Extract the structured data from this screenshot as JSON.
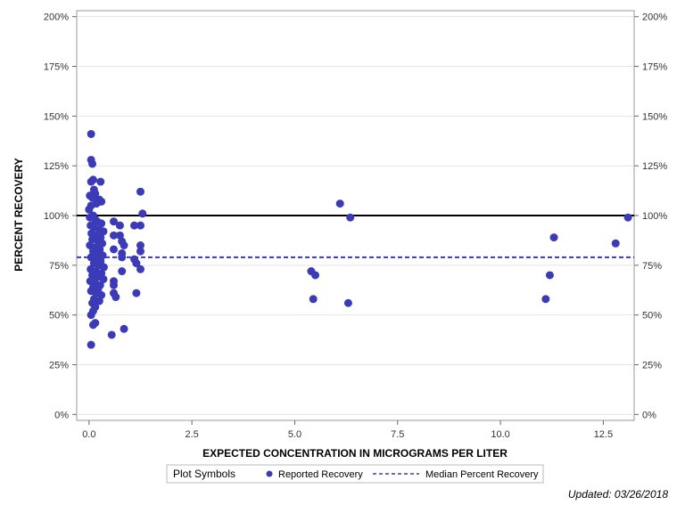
{
  "chart_data": {
    "type": "scatter",
    "title": "",
    "xlabel": "EXPECTED CONCENTRATION IN MICROGRAMS PER LITER",
    "ylabel": "PERCENT RECOVERY",
    "xlim": [
      -0.3,
      13.25
    ],
    "ylim": [
      -3,
      203
    ],
    "x_ticks": [
      0.0,
      2.5,
      5.0,
      7.5,
      10.0,
      12.5
    ],
    "x_tick_labels": [
      "0.0",
      "2.5",
      "5.0",
      "7.5",
      "10.0",
      "12.5"
    ],
    "y_ticks": [
      0,
      25,
      50,
      75,
      100,
      125,
      150,
      175,
      200
    ],
    "y_tick_labels": [
      "0%",
      "25%",
      "50%",
      "75%",
      "100%",
      "125%",
      "150%",
      "175%",
      "200%"
    ],
    "reference_line": 100,
    "median_percent_recovery": 79,
    "series": [
      {
        "name": "Reported Recovery",
        "color": "#3b3bb8",
        "points": [
          [
            0.05,
            141
          ],
          [
            0.05,
            128
          ],
          [
            0.08,
            126
          ],
          [
            0.05,
            117
          ],
          [
            0.1,
            118
          ],
          [
            0.28,
            117
          ],
          [
            0.12,
            113
          ],
          [
            0.15,
            111
          ],
          [
            0.02,
            110
          ],
          [
            0.08,
            109
          ],
          [
            0.25,
            108
          ],
          [
            0.3,
            107
          ],
          [
            0.18,
            106
          ],
          [
            0.05,
            105
          ],
          [
            0.0,
            103
          ],
          [
            0.1,
            100
          ],
          [
            0.02,
            99
          ],
          [
            0.15,
            98
          ],
          [
            0.2,
            97
          ],
          [
            0.3,
            96
          ],
          [
            0.04,
            95
          ],
          [
            0.12,
            94
          ],
          [
            0.25,
            93
          ],
          [
            0.35,
            92
          ],
          [
            0.06,
            91
          ],
          [
            0.18,
            90
          ],
          [
            0.28,
            89
          ],
          [
            0.08,
            88
          ],
          [
            0.22,
            87
          ],
          [
            0.32,
            86
          ],
          [
            0.02,
            85
          ],
          [
            0.15,
            84
          ],
          [
            0.26,
            83
          ],
          [
            0.1,
            82
          ],
          [
            0.2,
            81
          ],
          [
            0.33,
            80
          ],
          [
            0.05,
            79
          ],
          [
            0.18,
            78
          ],
          [
            0.28,
            77
          ],
          [
            0.12,
            76
          ],
          [
            0.24,
            75
          ],
          [
            0.36,
            74
          ],
          [
            0.04,
            73
          ],
          [
            0.16,
            72
          ],
          [
            0.3,
            71
          ],
          [
            0.08,
            70
          ],
          [
            0.2,
            69
          ],
          [
            0.35,
            68
          ],
          [
            0.03,
            67
          ],
          [
            0.14,
            66
          ],
          [
            0.27,
            65
          ],
          [
            0.1,
            64
          ],
          [
            0.22,
            63
          ],
          [
            0.05,
            62
          ],
          [
            0.18,
            61
          ],
          [
            0.3,
            60
          ],
          [
            0.12,
            58
          ],
          [
            0.25,
            57
          ],
          [
            0.08,
            56
          ],
          [
            0.15,
            54
          ],
          [
            0.1,
            52
          ],
          [
            0.05,
            50
          ],
          [
            0.15,
            46
          ],
          [
            0.1,
            45
          ],
          [
            0.05,
            35
          ],
          [
            0.6,
            97
          ],
          [
            0.75,
            95
          ],
          [
            0.6,
            90
          ],
          [
            0.75,
            90
          ],
          [
            0.8,
            87
          ],
          [
            0.85,
            85
          ],
          [
            0.6,
            83
          ],
          [
            0.8,
            81
          ],
          [
            0.8,
            79
          ],
          [
            0.6,
            67
          ],
          [
            0.6,
            65
          ],
          [
            0.6,
            61
          ],
          [
            0.65,
            59
          ],
          [
            0.8,
            72
          ],
          [
            0.55,
            40
          ],
          [
            0.85,
            43
          ],
          [
            1.25,
            112
          ],
          [
            1.3,
            101
          ],
          [
            1.1,
            95
          ],
          [
            1.25,
            95
          ],
          [
            1.25,
            85
          ],
          [
            1.25,
            82
          ],
          [
            1.1,
            78
          ],
          [
            1.15,
            76
          ],
          [
            1.25,
            73
          ],
          [
            1.15,
            61
          ],
          [
            5.4,
            72
          ],
          [
            5.5,
            70
          ],
          [
            5.45,
            58
          ],
          [
            6.1,
            106
          ],
          [
            6.35,
            99
          ],
          [
            6.3,
            56
          ],
          [
            11.1,
            58
          ],
          [
            11.2,
            70
          ],
          [
            11.3,
            89
          ],
          [
            12.8,
            86
          ],
          [
            13.1,
            99
          ]
        ]
      }
    ],
    "legend": {
      "title": "Plot Symbols",
      "position": "bottom-center",
      "entries": [
        "Reported Recovery",
        "Median Percent Recovery"
      ]
    }
  },
  "footer": {
    "updated_text": "Updated: 03/26/2018"
  }
}
